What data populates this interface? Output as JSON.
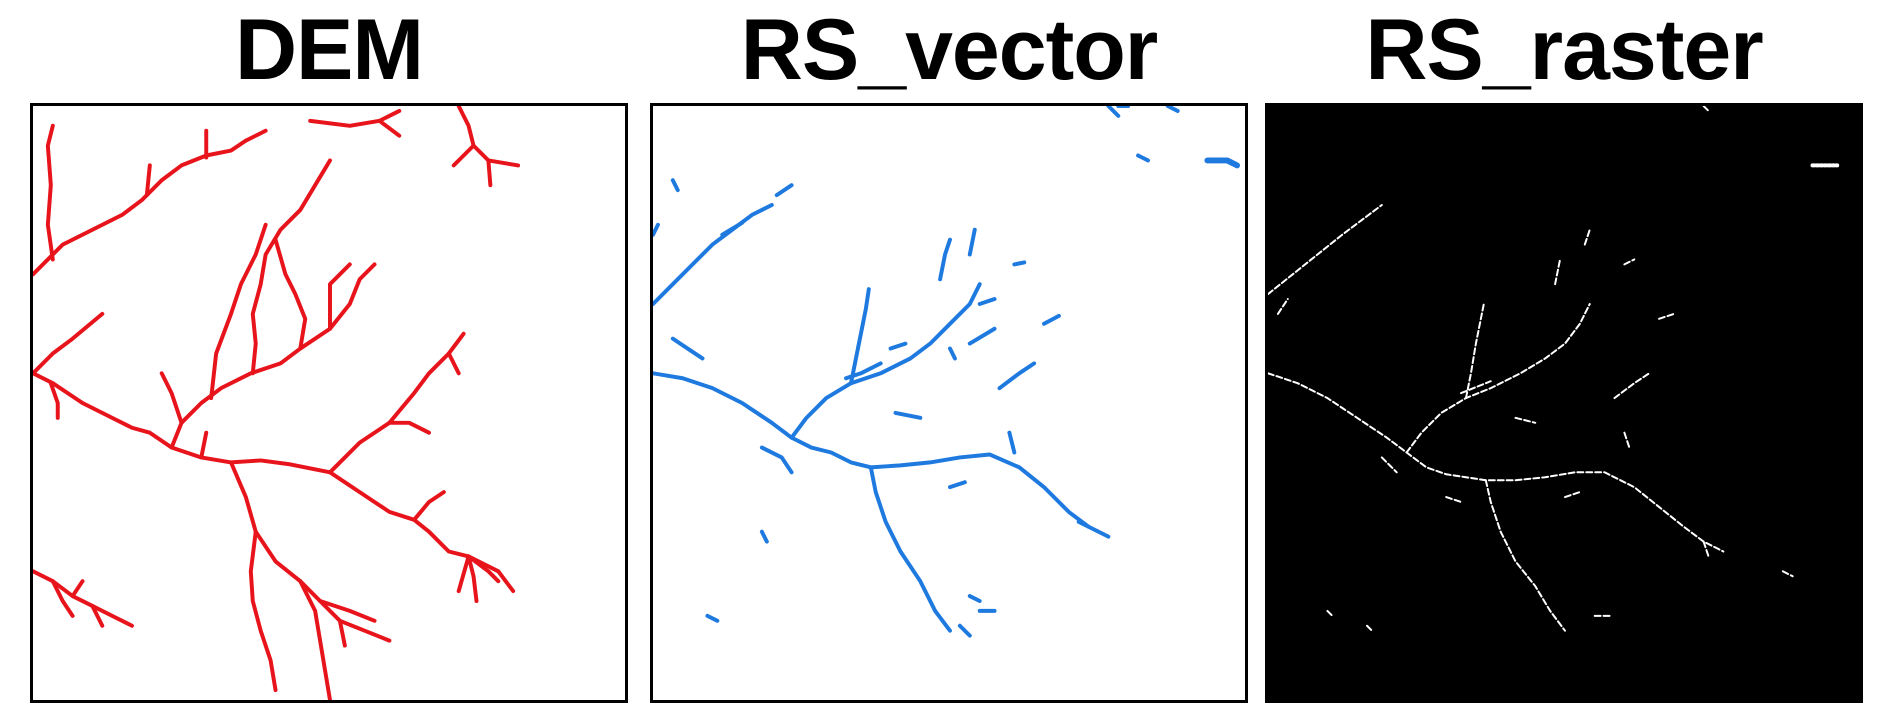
{
  "panels": [
    {
      "title": "DEM",
      "stroke": "#e8141c",
      "background": "#ffffff"
    },
    {
      "title": "RS_vector",
      "stroke": "#1f7ae0",
      "background": "#ffffff"
    },
    {
      "title": "RS_raster",
      "stroke": "#ffffff",
      "background": "#000000"
    }
  ]
}
